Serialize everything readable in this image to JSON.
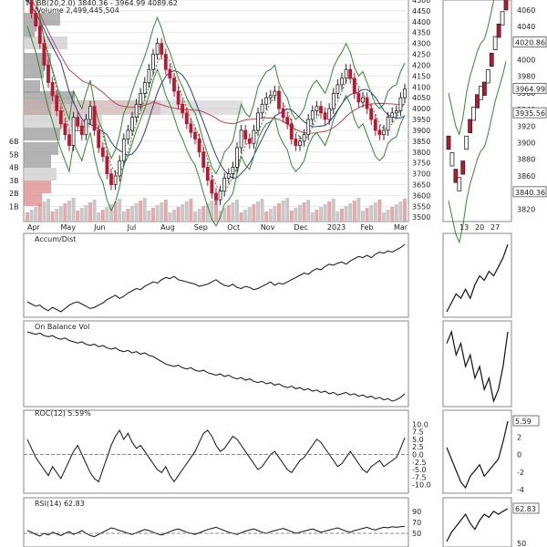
{
  "chart_data": {
    "type": "line",
    "price_panel": {
      "legend_bb": "BB(20,2.0) 3840.36 - 3964.99 4089.62",
      "legend_volume": "Volume 2,499,445,504",
      "ylim": [
        3480,
        4500
      ],
      "y_ticks": [
        "4500",
        "4450",
        "4400",
        "4350",
        "4300",
        "4250",
        "4200",
        "4150",
        "4100",
        "4050",
        "4000",
        "3950",
        "3900",
        "3850",
        "3800",
        "3750",
        "3700",
        "3650",
        "3600",
        "3550",
        "3500"
      ],
      "volume_ticks": [
        "6B",
        "5B",
        "4B",
        "3B",
        "2B",
        "1B"
      ],
      "x_labels": [
        "Apr",
        "May",
        "Jun",
        "Jul",
        "Aug",
        "Sep",
        "Oct",
        "Nov",
        "Dec",
        "2023",
        "Feb",
        "Mar"
      ],
      "close_series": [
        4500,
        4440,
        4380,
        4300,
        4200,
        4120,
        4060,
        3990,
        3930,
        3880,
        3830,
        3960,
        3920,
        3880,
        3950,
        4010,
        3900,
        3820,
        3780,
        3700,
        3650,
        3690,
        3760,
        3860,
        3900,
        3960,
        4020,
        4070,
        4120,
        4180,
        4250,
        4300,
        4250,
        4180,
        4140,
        4080,
        4020,
        3980,
        3930,
        3890,
        3860,
        3800,
        3730,
        3670,
        3610,
        3580,
        3620,
        3680,
        3700,
        3730,
        3820,
        3900,
        3860,
        3840,
        3900,
        3980,
        4020,
        4050,
        4060,
        4080,
        4000,
        3960,
        3930,
        3860,
        3830,
        3850,
        3880,
        3950,
        3990,
        4010,
        3980,
        3950,
        4000,
        4070,
        4110,
        4140,
        4180,
        4140,
        4070,
        4030,
        4050,
        4000,
        3950,
        3900,
        3880,
        3900,
        3960,
        3980,
        3990,
        4050,
        4090
      ]
    },
    "side_panel": {
      "y_ticks": [
        "4060",
        "4040",
        "4020",
        "4000",
        "3980",
        "3960",
        "3940",
        "3920",
        "3900",
        "3880",
        "3860",
        "3840",
        "3820"
      ],
      "ylim": [
        3805,
        4072
      ],
      "x_labels": [
        "13",
        "20",
        "27"
      ],
      "badges": [
        "4020.86",
        "3964.99",
        "3935.56",
        "3840.36"
      ]
    },
    "indicators": [
      {
        "name": "Accum/Dist",
        "values": [
          0,
          -2,
          -4,
          -3,
          -6,
          -8,
          -5,
          -7,
          -9,
          -6,
          -3,
          -1,
          0,
          -2,
          -4,
          -6,
          -5,
          -3,
          -1,
          2,
          4,
          6,
          3,
          5,
          8,
          10,
          12,
          11,
          14,
          16,
          18,
          17,
          20,
          22,
          21,
          23,
          20,
          19,
          18,
          17,
          16,
          14,
          15,
          16,
          18,
          20,
          17,
          15,
          14,
          16,
          13,
          12,
          14,
          13,
          11,
          12,
          14,
          16,
          18,
          15,
          17,
          16,
          18,
          20,
          22,
          24,
          26,
          25,
          28,
          30,
          29,
          32,
          34,
          33,
          35,
          36,
          34,
          37,
          39,
          41,
          40,
          42,
          40,
          43,
          45,
          44,
          46,
          45,
          47,
          49,
          52
        ]
      },
      {
        "name": "On Balance Vol",
        "values": [
          0,
          -1,
          -2,
          -1,
          -3,
          -4,
          -3,
          -5,
          -6,
          -5,
          -7,
          -8,
          -9,
          -8,
          -10,
          -11,
          -10,
          -12,
          -11,
          -13,
          -14,
          -13,
          -15,
          -16,
          -15,
          -17,
          -16,
          -18,
          -17,
          -19,
          -20,
          -22,
          -24,
          -26,
          -27,
          -28,
          -27,
          -29,
          -30,
          -29,
          -31,
          -32,
          -31,
          -33,
          -34,
          -35,
          -34,
          -36,
          -35,
          -37,
          -38,
          -37,
          -39,
          -38,
          -40,
          -41,
          -40,
          -42,
          -41,
          -43,
          -42,
          -44,
          -45,
          -44,
          -46,
          -45,
          -47,
          -46,
          -48,
          -47,
          -49,
          -48,
          -50,
          -49,
          -51,
          -50,
          -49,
          -51,
          -50,
          -52,
          -51,
          -53,
          -52,
          -54,
          -53,
          -55,
          -54,
          -56,
          -55,
          -53,
          -50
        ]
      },
      {
        "name": "ROC(12) 5.59%",
        "ylim": [
          -11,
          11
        ],
        "y_ticks": [
          "10.0",
          "7.5",
          "5.0",
          "2.5",
          "0.0",
          "-2.5",
          "-5.0",
          "-7.5",
          "-10.0"
        ],
        "side_ticks": [
          "4",
          "2",
          "0",
          "-2",
          "-4"
        ],
        "badge": "5.59",
        "values": [
          5,
          2,
          -1,
          -3,
          -5,
          -7,
          -4,
          -6,
          -8,
          -5,
          -2,
          1,
          3,
          0,
          -3,
          -6,
          -8,
          -9,
          -5,
          -1,
          3,
          6,
          8,
          5,
          7,
          4,
          2,
          3,
          1,
          -1,
          -3,
          -5,
          -6,
          -4,
          -7,
          -9,
          -7,
          -5,
          -3,
          -1,
          1,
          4,
          7,
          8,
          6,
          3,
          1,
          2,
          4,
          6,
          5,
          3,
          1,
          -1,
          -3,
          -5,
          -4,
          -2,
          0,
          1,
          -1,
          -3,
          -5,
          -6,
          -4,
          -2,
          -1,
          1,
          3,
          5,
          4,
          2,
          0,
          -2,
          -4,
          -3,
          -1,
          1,
          -1,
          -3,
          -5,
          -6,
          -4,
          -3,
          -2,
          -4,
          -3,
          -2,
          -1,
          2,
          5.59
        ]
      },
      {
        "name": "RSI(14) 62.83",
        "ylim": [
          35,
          95
        ],
        "y_ticks": [
          "90",
          "70",
          "50"
        ],
        "side_ticks": [
          "70",
          "50"
        ],
        "badge": "62.83",
        "values": [
          55,
          52,
          48,
          45,
          50,
          47,
          52,
          49,
          46,
          50,
          53,
          48,
          51,
          55,
          50,
          46,
          44,
          48,
          52,
          56,
          60,
          58,
          55,
          53,
          50,
          48,
          51,
          54,
          57,
          55,
          52,
          49,
          47,
          50,
          53,
          56,
          58,
          55,
          52,
          50,
          48,
          51,
          54,
          57,
          59,
          61,
          58,
          55,
          52,
          50,
          48,
          51,
          54,
          56,
          58,
          55,
          52,
          50,
          53,
          55,
          57,
          59,
          56,
          53,
          50,
          52,
          54,
          56,
          58,
          55,
          52,
          54,
          56,
          58,
          60,
          57,
          54,
          52,
          55,
          57,
          59,
          61,
          58,
          56,
          59,
          61,
          60,
          62,
          61,
          62,
          62.83
        ]
      }
    ]
  }
}
